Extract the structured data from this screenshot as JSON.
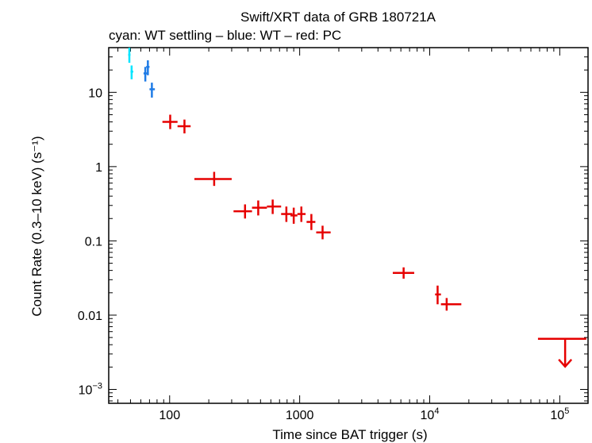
{
  "chart_data": {
    "type": "scatter",
    "title": "Swift/XRT data of GRB 180721A",
    "subtitle": "cyan: WT settling – blue: WT – red: PC",
    "xlabel": "Time since BAT trigger (s)",
    "ylabel": "Count Rate (0.3–10 keV) (s⁻¹)",
    "xscale": "log",
    "yscale": "log",
    "xlim": [
      34,
      165000
    ],
    "ylim": [
      0.00065,
      40
    ],
    "x_ticks": [
      {
        "value": 100,
        "base": "100",
        "exp": ""
      },
      {
        "value": 1000,
        "base": "1000",
        "exp": ""
      },
      {
        "value": 10000,
        "base": "10",
        "exp": "4"
      },
      {
        "value": 100000,
        "base": "10",
        "exp": "5"
      }
    ],
    "y_ticks": [
      {
        "value": 10,
        "base": "10",
        "exp": ""
      },
      {
        "value": 1,
        "base": "1",
        "exp": ""
      },
      {
        "value": 0.1,
        "base": "0.1",
        "exp": ""
      },
      {
        "value": 0.01,
        "base": "0.01",
        "exp": ""
      },
      {
        "value": 0.001,
        "base": "10",
        "exp": "−3"
      }
    ],
    "series": [
      {
        "name": "WT settling",
        "color": "#00e5ff",
        "points": [
          {
            "x": 49,
            "xlo": 48,
            "xhi": 50,
            "y": 32,
            "ylo": 25,
            "yhi": 40
          },
          {
            "x": 51,
            "xlo": 50,
            "xhi": 52.5,
            "y": 19,
            "ylo": 15,
            "yhi": 23
          }
        ]
      },
      {
        "name": "WT",
        "color": "#1e7be6",
        "points": [
          {
            "x": 65,
            "xlo": 63,
            "xhi": 67,
            "y": 18,
            "ylo": 14,
            "yhi": 22
          },
          {
            "x": 68,
            "xlo": 66,
            "xhi": 70,
            "y": 22,
            "ylo": 17,
            "yhi": 27
          },
          {
            "x": 73,
            "xlo": 70,
            "xhi": 77,
            "y": 11,
            "ylo": 8.5,
            "yhi": 13.5
          }
        ]
      },
      {
        "name": "PC",
        "color": "#e60000",
        "points": [
          {
            "x": 101,
            "xlo": 88,
            "xhi": 115,
            "y": 4.0,
            "ylo": 3.2,
            "yhi": 5.0
          },
          {
            "x": 130,
            "xlo": 115,
            "xhi": 145,
            "y": 3.5,
            "ylo": 2.8,
            "yhi": 4.3
          },
          {
            "x": 220,
            "xlo": 155,
            "xhi": 300,
            "y": 0.68,
            "ylo": 0.55,
            "yhi": 0.85
          },
          {
            "x": 380,
            "xlo": 310,
            "xhi": 430,
            "y": 0.25,
            "ylo": 0.2,
            "yhi": 0.31
          },
          {
            "x": 480,
            "xlo": 430,
            "xhi": 560,
            "y": 0.28,
            "ylo": 0.22,
            "yhi": 0.35
          },
          {
            "x": 620,
            "xlo": 560,
            "xhi": 720,
            "y": 0.29,
            "ylo": 0.23,
            "yhi": 0.36
          },
          {
            "x": 790,
            "xlo": 720,
            "xhi": 880,
            "y": 0.23,
            "ylo": 0.18,
            "yhi": 0.29
          },
          {
            "x": 900,
            "xlo": 850,
            "xhi": 960,
            "y": 0.22,
            "ylo": 0.17,
            "yhi": 0.28
          },
          {
            "x": 1030,
            "xlo": 960,
            "xhi": 1110,
            "y": 0.23,
            "ylo": 0.18,
            "yhi": 0.29
          },
          {
            "x": 1230,
            "xlo": 1130,
            "xhi": 1320,
            "y": 0.18,
            "ylo": 0.14,
            "yhi": 0.23
          },
          {
            "x": 1500,
            "xlo": 1340,
            "xhi": 1730,
            "y": 0.13,
            "ylo": 0.105,
            "yhi": 0.16
          },
          {
            "x": 6300,
            "xlo": 5200,
            "xhi": 7600,
            "y": 0.037,
            "ylo": 0.031,
            "yhi": 0.044
          },
          {
            "x": 11500,
            "xlo": 11000,
            "xhi": 12200,
            "y": 0.019,
            "ylo": 0.014,
            "yhi": 0.025
          },
          {
            "x": 13500,
            "xlo": 12200,
            "xhi": 17500,
            "y": 0.014,
            "ylo": 0.0115,
            "yhi": 0.017
          }
        ],
        "upper_limits": [
          {
            "x": 110000,
            "xlo": 68000,
            "xhi": 160000,
            "y": 0.0048
          }
        ]
      }
    ]
  }
}
